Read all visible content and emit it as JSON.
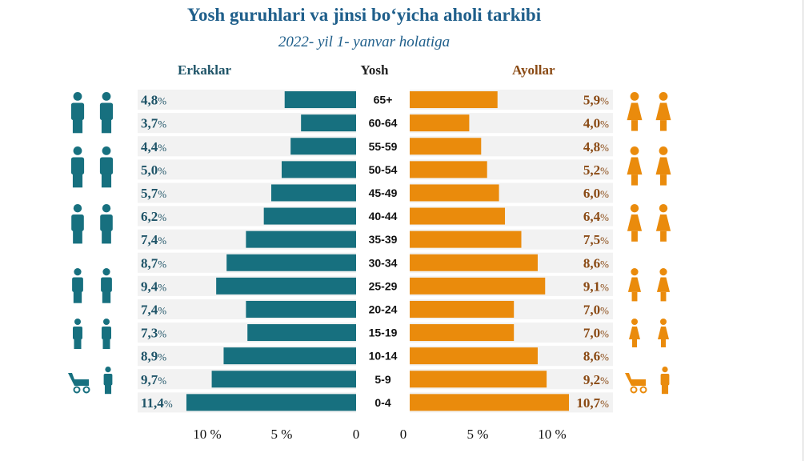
{
  "title": "Yosh guruhlari va jinsi bo‘yicha aholi tarkibi",
  "subtitle": "2022- yil 1- yanvar holatiga",
  "headers": {
    "male": "Erkaklar",
    "age": "Yosh",
    "female": "Ayollar"
  },
  "colors": {
    "male": "#17707f",
    "female": "#ea8b0c",
    "male_text": "#1f5468",
    "female_text": "#8a4a14",
    "band": "#f2f2f2"
  },
  "icons": [
    "elderly-couple-icon",
    "adult-couple-icon",
    "young-adult-couple-icon",
    "teen-couple-icon",
    "child-couple-icon",
    "stroller-child-icon"
  ],
  "chart_data": {
    "type": "bar",
    "categories": [
      "65+",
      "60-64",
      "55-59",
      "50-54",
      "45-49",
      "40-44",
      "35-39",
      "30-34",
      "25-29",
      "20-24",
      "15-19",
      "10-14",
      "5-9",
      "0-4"
    ],
    "series": [
      {
        "name": "Erkaklar",
        "values": [
          4.8,
          3.7,
          4.4,
          5.0,
          5.7,
          6.2,
          7.4,
          8.7,
          9.4,
          7.4,
          7.3,
          8.9,
          9.7,
          11.4
        ],
        "labels": [
          "4,8",
          "3,7",
          "4,4",
          "5,0",
          "5,7",
          "6,2",
          "7,4",
          "8,7",
          "9,4",
          "7,4",
          "7,3",
          "8,9",
          "9,7",
          "11,4"
        ]
      },
      {
        "name": "Ayollar",
        "values": [
          5.9,
          4.0,
          4.8,
          5.2,
          6.0,
          6.4,
          7.5,
          8.6,
          9.1,
          7.0,
          7.0,
          8.6,
          9.2,
          10.7
        ],
        "labels": [
          "5,9",
          "4,0",
          "4,8",
          "5,2",
          "6,0",
          "6,4",
          "7,5",
          "8,6",
          "9,1",
          "7,0",
          "7,0",
          "8,6",
          "9,2",
          "10,7"
        ]
      }
    ],
    "percent_sign": "%",
    "xticks_left": [
      "10 %",
      "5 %",
      "0"
    ],
    "xticks_right": [
      "0",
      "5 %",
      "10 %"
    ],
    "xticks_values": [
      10,
      5,
      0
    ],
    "xlim": [
      0,
      12
    ]
  }
}
